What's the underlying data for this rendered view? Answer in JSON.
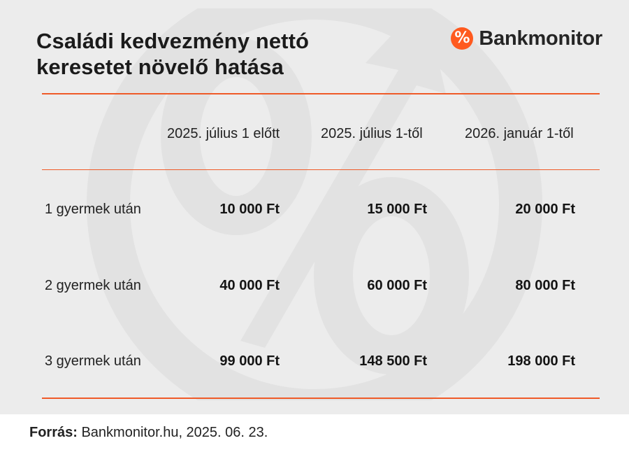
{
  "title": "Családi kedvezmény nettó\nkeresetet növelő hatása",
  "brand": {
    "name": "Bankmonitor",
    "logo_glyph": "%",
    "logo_icon": "percent-badge-icon",
    "accent_color": "#ff5a1f"
  },
  "table": {
    "headers": [
      "",
      "2025. július 1 előtt",
      "2025. július 1-től",
      "2026. január 1-től"
    ],
    "rows": [
      {
        "label": "1 gyermek után",
        "values": [
          "10 000 Ft",
          "15 000 Ft",
          "20 000 Ft"
        ]
      },
      {
        "label": "2 gyermek után",
        "values": [
          "40 000 Ft",
          "60 000 Ft",
          "80 000 Ft"
        ]
      },
      {
        "label": "3 gyermek után",
        "values": [
          "99 000 Ft",
          "148 500 Ft",
          "198 000 Ft"
        ]
      }
    ]
  },
  "source": {
    "label": "Forrás:",
    "text": "Bankmonitor.hu, 2025. 06. 23."
  },
  "chart_data": {
    "type": "table",
    "title": "Családi kedvezmény nettó keresetet növelő hatása",
    "columns": [
      "2025. július 1 előtt",
      "2025. július 1-től",
      "2026. január 1-től"
    ],
    "row_labels": [
      "1 gyermek után",
      "2 gyermek után",
      "3 gyermek után"
    ],
    "unit": "Ft",
    "values": [
      [
        10000,
        15000,
        20000
      ],
      [
        40000,
        60000,
        80000
      ],
      [
        99000,
        148500,
        198000
      ]
    ],
    "grid": false
  },
  "colors": {
    "background": "#ececec",
    "page": "#ffffff",
    "accent": "#ef5a28",
    "text": "#1b1b1b",
    "watermark": "#e2e2e2"
  }
}
